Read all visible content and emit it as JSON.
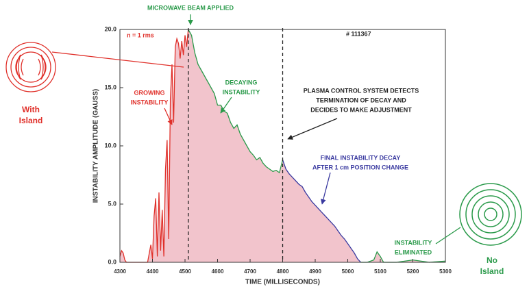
{
  "chart_data": {
    "type": "area-line",
    "x_label": "TIME (MILLISECONDS)",
    "y_label": "INSTABILITY AMPLITUDE (GAUSS)",
    "xlim": [
      4300,
      5300
    ],
    "ylim": [
      0,
      20
    ],
    "xticks": [
      4300,
      4400,
      4500,
      4600,
      4700,
      4800,
      4900,
      5000,
      5100,
      5200,
      5300
    ],
    "yticks": [
      {
        "value": 0,
        "label": "0.0"
      },
      {
        "value": 5,
        "label": "5.0"
      },
      {
        "value": 10,
        "label": "10.0"
      },
      {
        "value": 15,
        "label": "15.0"
      },
      {
        "value": 20,
        "label": "20.0"
      }
    ],
    "fill_color": "#f2c4cc",
    "vlines": [
      4510,
      4800
    ],
    "series": [
      {
        "color": "#e0302a",
        "x": [
          4300,
          4305,
          4310,
          4315,
          4320,
          4330,
          4350,
          4370,
          4385,
          4395,
          4400,
          4405,
          4410,
          4415,
          4420,
          4425,
          4430,
          4435,
          4440,
          4445,
          4450,
          4455,
          4460,
          4465,
          4470,
          4475,
          4480,
          4485,
          4490,
          4495,
          4500,
          4505,
          4510
        ],
        "values": [
          0.5,
          1.0,
          0.8,
          0.2,
          0.0,
          0.0,
          0.0,
          0.0,
          0.0,
          1.5,
          0.3,
          4.0,
          5.5,
          0.5,
          6.0,
          1.0,
          4.5,
          0.5,
          8.0,
          10.5,
          2.0,
          14.0,
          17.0,
          12.0,
          18.5,
          19.2,
          18.8,
          17.5,
          19.0,
          17.8,
          19.5,
          18.5,
          20.0
        ]
      },
      {
        "color": "#2a9a4a",
        "x": [
          4510,
          4520,
          4530,
          4540,
          4550,
          4560,
          4570,
          4580,
          4590,
          4600,
          4610,
          4620,
          4630,
          4640,
          4650,
          4660,
          4670,
          4680,
          4690,
          4700,
          4710,
          4720,
          4730,
          4740,
          4750,
          4760,
          4770,
          4780,
          4790,
          4800
        ],
        "values": [
          20.0,
          19.5,
          18.0,
          17.0,
          16.5,
          16.0,
          15.5,
          15.0,
          14.5,
          13.5,
          13.5,
          13.0,
          12.8,
          12.0,
          11.5,
          11.8,
          11.0,
          10.5,
          10.0,
          9.5,
          9.2,
          8.8,
          9.0,
          8.5,
          8.2,
          8.0,
          7.8,
          7.9,
          7.7,
          8.8
        ]
      },
      {
        "color": "#3a3aa0",
        "x": [
          4800,
          4810,
          4820,
          4830,
          4840,
          4850,
          4860,
          4870,
          4880,
          4890,
          4900,
          4910,
          4920,
          4930,
          4940,
          4950,
          4960,
          4970,
          4980,
          4990,
          5000,
          5010,
          5020,
          5030,
          5040
        ],
        "values": [
          8.8,
          8.0,
          7.6,
          7.3,
          7.0,
          6.7,
          6.5,
          6.0,
          5.6,
          5.2,
          4.9,
          4.6,
          4.3,
          4.0,
          3.7,
          3.4,
          3.1,
          2.7,
          2.3,
          2.0,
          1.6,
          1.2,
          0.8,
          0.3,
          0.0
        ]
      },
      {
        "color": "#2a9a4a",
        "x": [
          5040,
          5060,
          5080,
          5090,
          5100,
          5110,
          5150,
          5200,
          5250,
          5300
        ],
        "values": [
          0.0,
          0.0,
          0.2,
          0.9,
          0.5,
          0.0,
          0.0,
          0.2,
          0.0,
          0.1
        ]
      }
    ],
    "annotations": [
      {
        "text": [
          "MICROWAVE BEAM APPLIED"
        ],
        "color": "#2a9a4a"
      },
      {
        "text": [
          "n = 1 rms"
        ],
        "color": "#e0302a"
      },
      {
        "text": [
          "# 111367"
        ],
        "color": "#222222"
      },
      {
        "text": [
          "GROWING",
          "INSTABILITY"
        ],
        "color": "#e0302a"
      },
      {
        "text": [
          "DECAYING",
          "INSTABILITY"
        ],
        "color": "#2a9a4a"
      },
      {
        "text": [
          "PLASMA CONTROL SYSTEM DETECTS",
          "TERMINATION OF DECAY AND",
          "DECIDES TO MAKE ADJUSTMENT"
        ],
        "color": "#222222"
      },
      {
        "text": [
          "FINAL INSTABILITY DECAY",
          "AFTER 1 cm POSITION CHANGE"
        ],
        "color": "#3a3aa0"
      },
      {
        "text": [
          "INSTABILITY",
          "ELIMINATED"
        ],
        "color": "#2a9a4a"
      },
      {
        "text": [
          "With",
          "Island"
        ],
        "color": "#e0302a"
      },
      {
        "text": [
          "No",
          "Island"
        ],
        "color": "#2a9a4a"
      }
    ]
  }
}
